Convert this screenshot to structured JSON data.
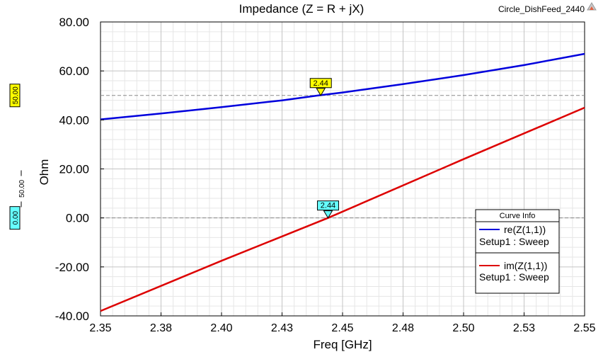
{
  "header": {
    "title": "Impedance (Z = R + jX)",
    "design_name": "Circle_DishFeed_2440"
  },
  "chart_data": {
    "type": "line",
    "xlabel": "Freq [GHz]",
    "ylabel": "Ohm",
    "xlim": [
      2.35,
      2.55
    ],
    "ylim": [
      -40,
      80
    ],
    "x_ticks": [
      "2.35",
      "2.38",
      "2.40",
      "2.43",
      "2.45",
      "2.48",
      "2.50",
      "2.53",
      "2.55"
    ],
    "y_ticks": [
      "80.00",
      "60.00",
      "40.00",
      "20.00",
      "0.00",
      "-20.00",
      "-40.00"
    ],
    "grid": true,
    "legend_position": "right",
    "legend_title": "Curve Info",
    "series": [
      {
        "name": "re(Z(1,1))",
        "setup": "Setup1 : Sweep",
        "color": "#0000dd",
        "x": [
          2.35,
          2.375,
          2.4,
          2.425,
          2.44,
          2.45,
          2.475,
          2.5,
          2.525,
          2.55
        ],
        "y": [
          40.2,
          42.6,
          45.2,
          48.0,
          50.0,
          51.2,
          54.6,
          58.3,
          62.4,
          67.0
        ]
      },
      {
        "name": "im(Z(1,1))",
        "setup": "Setup1 : Sweep",
        "color": "#dd0000",
        "x": [
          2.35,
          2.4,
          2.444,
          2.5,
          2.55
        ],
        "y": [
          -38.0,
          -17.5,
          0.0,
          24.0,
          45.0
        ]
      }
    ],
    "markers": [
      {
        "label": "2.44",
        "x": 2.441,
        "y": 50.0,
        "color": "#ffff00"
      },
      {
        "label": "2.44",
        "x": 2.444,
        "y": 0.0,
        "color": "#66ffff"
      }
    ],
    "reference_lines": [
      {
        "y": 50.0,
        "label": "50.00",
        "color": "#ffff00"
      },
      {
        "y": 0.0,
        "label": "0.00",
        "color": "#66ffff"
      }
    ],
    "side_annotation": "50.00"
  }
}
